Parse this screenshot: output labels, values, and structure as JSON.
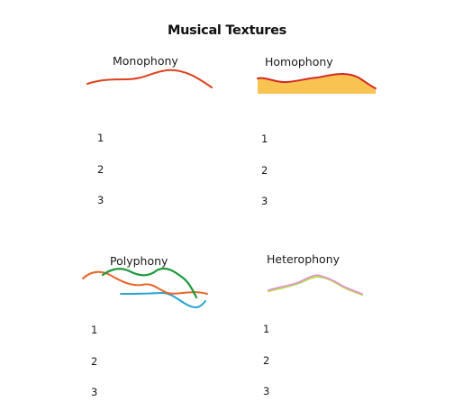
{
  "title": "Musical Textures",
  "panels": [
    {
      "label": "Monophony",
      "numbers": [
        "1",
        "2",
        "3"
      ]
    },
    {
      "label": "Homophony",
      "numbers": [
        "1",
        "2",
        "3"
      ]
    },
    {
      "label": "Polyphony",
      "numbers": [
        "1",
        "2",
        "3"
      ]
    },
    {
      "label": "Heterophony",
      "numbers": [
        "1",
        "2",
        "3"
      ]
    }
  ],
  "colors": {
    "melody_red": "#e0411f",
    "homophony_fill": "#f9c352",
    "poly_green": "#1e9a3a",
    "poly_blue": "#2aa3d6",
    "hetero_pink": "#e58ad8",
    "hetero_lime": "#b6e04a"
  }
}
